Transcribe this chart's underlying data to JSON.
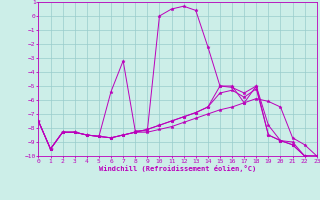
{
  "xlabel": "Windchill (Refroidissement éolien,°C)",
  "xlim": [
    0,
    23
  ],
  "ylim": [
    -10,
    1
  ],
  "xticks": [
    0,
    1,
    2,
    3,
    4,
    5,
    6,
    7,
    8,
    9,
    10,
    11,
    12,
    13,
    14,
    15,
    16,
    17,
    18,
    19,
    20,
    21,
    22,
    23
  ],
  "yticks": [
    1,
    0,
    -1,
    -2,
    -3,
    -4,
    -5,
    -6,
    -7,
    -8,
    -9,
    -10
  ],
  "background_color": "#cceee8",
  "grid_color": "#99cccc",
  "line_color": "#bb00bb",
  "line1_x": [
    0,
    1,
    2,
    3,
    4,
    5,
    6,
    7,
    8,
    9,
    10,
    11,
    12,
    13,
    14,
    15,
    16,
    17,
    18,
    19,
    20,
    21,
    22,
    23
  ],
  "line1_y": [
    -7.5,
    -9.5,
    -8.3,
    -8.3,
    -8.5,
    -8.6,
    -5.4,
    -3.2,
    -8.2,
    -8.2,
    0.0,
    0.5,
    0.7,
    0.4,
    -2.2,
    -5.0,
    -5.0,
    -6.2,
    -5.0,
    -7.8,
    -8.9,
    -9.0,
    -10.0,
    -10.0
  ],
  "line2_x": [
    0,
    1,
    2,
    3,
    4,
    5,
    6,
    7,
    8,
    9,
    10,
    11,
    12,
    13,
    14,
    15,
    16,
    17,
    18,
    19,
    20,
    21,
    22,
    23
  ],
  "line2_y": [
    -7.5,
    -9.5,
    -8.3,
    -8.3,
    -8.5,
    -8.6,
    -8.7,
    -8.5,
    -8.3,
    -8.3,
    -8.1,
    -7.9,
    -7.6,
    -7.3,
    -7.0,
    -6.7,
    -6.5,
    -6.2,
    -5.9,
    -6.1,
    -6.5,
    -8.7,
    -9.2,
    -10.0
  ],
  "line3_x": [
    0,
    1,
    2,
    3,
    4,
    5,
    6,
    7,
    8,
    9,
    10,
    11,
    12,
    13,
    14,
    15,
    16,
    17,
    18,
    19,
    20,
    21,
    22,
    23
  ],
  "line3_y": [
    -7.5,
    -9.5,
    -8.3,
    -8.3,
    -8.5,
    -8.6,
    -8.7,
    -8.5,
    -8.3,
    -8.1,
    -7.8,
    -7.5,
    -7.2,
    -6.9,
    -6.5,
    -5.0,
    -5.1,
    -5.5,
    -5.0,
    -8.5,
    -8.9,
    -9.2,
    -10.0,
    -10.0
  ],
  "line4_x": [
    0,
    1,
    2,
    3,
    4,
    5,
    6,
    7,
    8,
    9,
    10,
    11,
    12,
    13,
    14,
    15,
    16,
    17,
    18,
    19,
    20,
    21,
    22,
    23
  ],
  "line4_y": [
    -7.5,
    -9.5,
    -8.3,
    -8.3,
    -8.5,
    -8.6,
    -8.7,
    -8.5,
    -8.3,
    -8.1,
    -7.8,
    -7.5,
    -7.2,
    -6.9,
    -6.5,
    -5.5,
    -5.3,
    -5.8,
    -5.2,
    -8.5,
    -8.9,
    -9.2,
    -10.0,
    -10.0
  ]
}
